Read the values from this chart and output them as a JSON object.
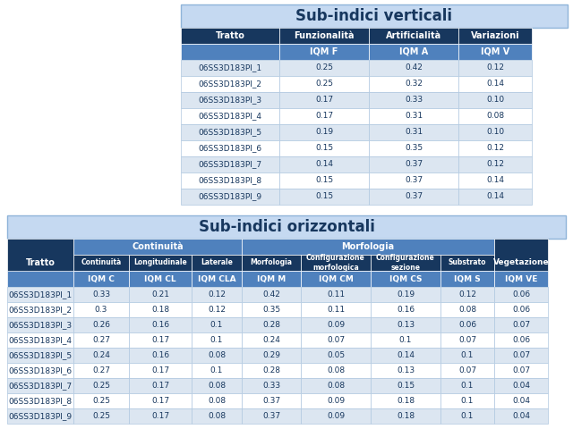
{
  "title_vertical": "Sub-indici verticali",
  "title_horizontal": "Sub-indici orizzontali",
  "bg_color": "#c5d9f1",
  "header_dark": "#17375e",
  "header_mid": "#4f81bd",
  "row_light": "#dce6f1",
  "row_white": "#ffffff",
  "text_light": "#ffffff",
  "text_dark": "#17375e",
  "v_tratti": [
    "06SS3D183PI_1",
    "06SS3D183PI_2",
    "06SS3D183PI_3",
    "06SS3D183PI_4",
    "06SS3D183PI_5",
    "06SS3D183PI_6",
    "06SS3D183PI_7",
    "06SS3D183PI_8",
    "06SS3D183PI_9"
  ],
  "v_funzionalita": [
    "0.25",
    "0.25",
    "0.17",
    "0.17",
    "0.19",
    "0.15",
    "0.14",
    "0.15",
    "0.15"
  ],
  "v_artificialita": [
    "0.42",
    "0.32",
    "0.33",
    "0.31",
    "0.31",
    "0.35",
    "0.37",
    "0.37",
    "0.37"
  ],
  "v_variazioni": [
    "0.12",
    "0.14",
    "0.10",
    "0.08",
    "0.10",
    "0.12",
    "0.12",
    "0.14",
    "0.14"
  ],
  "h_tratti": [
    "06SS3D183PI_1",
    "06SS3D183PI_2",
    "06SS3D183PI_3",
    "06SS3D183PI_4",
    "06SS3D183PI_5",
    "06SS3D183PI_6",
    "06SS3D183PI_7",
    "06SS3D183PI_8",
    "06SS3D183PI_9"
  ],
  "h_continuita": [
    "0.33",
    "0.3",
    "0.26",
    "0.27",
    "0.24",
    "0.27",
    "0.25",
    "0.25",
    "0.25"
  ],
  "h_longitudinale": [
    "0.21",
    "0.18",
    "0.16",
    "0.17",
    "0.16",
    "0.17",
    "0.17",
    "0.17",
    "0.17"
  ],
  "h_laterale": [
    "0.12",
    "0.12",
    "0.1",
    "0.1",
    "0.08",
    "0.1",
    "0.08",
    "0.08",
    "0.08"
  ],
  "h_morfologia": [
    "0.42",
    "0.35",
    "0.28",
    "0.24",
    "0.29",
    "0.28",
    "0.33",
    "0.37",
    "0.37"
  ],
  "h_conf_morf": [
    "0.11",
    "0.11",
    "0.09",
    "0.07",
    "0.05",
    "0.08",
    "0.08",
    "0.09",
    "0.09"
  ],
  "h_conf_sez": [
    "0.19",
    "0.16",
    "0.13",
    "0.1",
    "0.14",
    "0.13",
    "0.15",
    "0.18",
    "0.18"
  ],
  "h_substrato": [
    "0.12",
    "0.08",
    "0.06",
    "0.07",
    "0.1",
    "0.07",
    "0.1",
    "0.1",
    "0.1"
  ],
  "h_vegetazione": [
    "0.06",
    "0.06",
    "0.07",
    "0.06",
    "0.07",
    "0.07",
    "0.04",
    "0.04",
    "0.04"
  ]
}
